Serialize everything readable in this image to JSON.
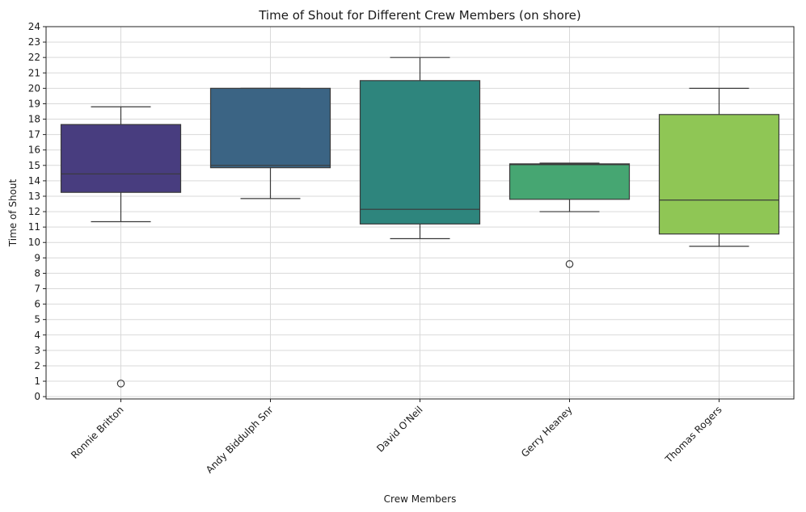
{
  "chart_data": {
    "type": "box",
    "title": "Time of Shout for Different Crew Members (on shore)",
    "xlabel": "Crew Members",
    "ylabel": "Time of Shout",
    "ylim": [
      -0.15,
      24
    ],
    "yticks": [
      0,
      1,
      2,
      3,
      4,
      5,
      6,
      7,
      8,
      9,
      10,
      11,
      12,
      13,
      14,
      15,
      16,
      17,
      18,
      19,
      20,
      21,
      22,
      23,
      24
    ],
    "grid": true,
    "categories": [
      "Ronnie Britton",
      "Andy Biddulph Snr",
      "David O'Neil",
      "Gerry Heaney",
      "Thomas Rogers"
    ],
    "boxes": [
      {
        "name": "Ronnie Britton",
        "whisker_low": 11.35,
        "q1": 13.25,
        "median": 14.45,
        "q3": 17.65,
        "whisker_high": 18.8,
        "outliers": [
          0.85
        ],
        "color": "#483d7f"
      },
      {
        "name": "Andy Biddulph Snr",
        "whisker_low": 12.85,
        "q1": 14.85,
        "median": 15.0,
        "q3": 20.0,
        "whisker_high": 20.0,
        "outliers": [],
        "color": "#3b6484"
      },
      {
        "name": "David O'Neil",
        "whisker_low": 10.25,
        "q1": 11.2,
        "median": 12.15,
        "q3": 20.5,
        "whisker_high": 22.0,
        "outliers": [],
        "color": "#2e857d"
      },
      {
        "name": "Gerry Heaney",
        "whisker_low": 12.0,
        "q1": 12.8,
        "median": 15.05,
        "q3": 15.1,
        "whisker_high": 15.15,
        "outliers": [
          8.6
        ],
        "color": "#46a672"
      },
      {
        "name": "Thomas Rogers",
        "whisker_low": 9.75,
        "q1": 10.55,
        "median": 12.75,
        "q3": 18.3,
        "whisker_high": 20.0,
        "outliers": [],
        "color": "#8fc655"
      }
    ]
  }
}
